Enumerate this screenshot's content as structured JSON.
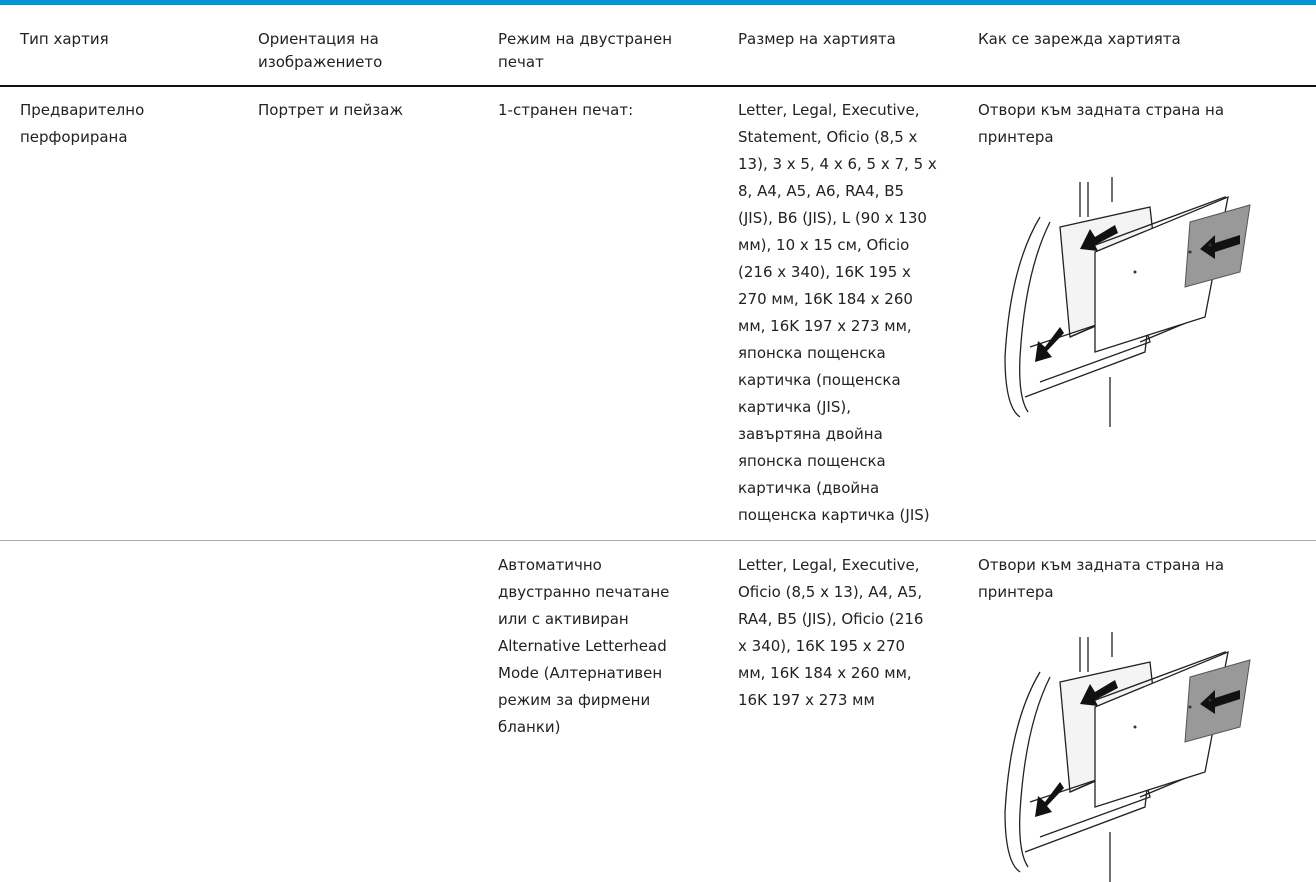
{
  "table": {
    "header": [
      [
        "Тип хартия"
      ],
      [
        "Ориентация на",
        "изображението"
      ],
      [
        "Режим на двустранен",
        "печат"
      ],
      [
        "Размер на хартията"
      ],
      [
        "Как се зарежда хартията"
      ]
    ],
    "rows": [
      [
        [
          "Предварително",
          "перфорирана"
        ],
        [
          "Портрет и пейзаж"
        ],
        [
          "1-странен печат:"
        ],
        [
          "Letter, Legal, Executive,",
          "Statement, Oficio (8,5 x",
          "13), 3 x 5, 4 x 6, 5 x 7, 5 x",
          "8, A4, A5, A6, RA4, B5",
          "(JIS), B6 (JIS), L (90 x 130",
          "мм), 10 x 15 см, Oficio",
          "(216 x 340), 16K 195 x",
          "270 мм, 16K 184 x 260",
          "мм, 16K 197 x 273 мм,",
          "японска пощенска",
          "картичка (пощенска",
          "картичка (JIS),",
          "завъртяна двойна",
          "японска пощенска",
          "картичка (двойна",
          "пощенска картичка (JIS)"
        ],
        [
          "Отвори към задната страна на",
          "принтера"
        ]
      ],
      [
        [],
        [],
        [
          "Автоматично",
          "двустранно печатане",
          "или с активиран",
          "Alternative Letterhead",
          "Mode (Алтернативен",
          "режим за фирмени",
          "бланки)"
        ],
        [
          "Letter, Legal, Executive,",
          "Oficio (8,5 x 13), A4, A5,",
          "RA4, B5 (JIS), Oficio (216",
          "x 340), 16K 195 x 270",
          "мм, 16K 184 x 260 мм,",
          "16K 197 x 273 мм"
        ],
        [
          "Отвори към задната страна на",
          "принтера"
        ]
      ]
    ]
  }
}
